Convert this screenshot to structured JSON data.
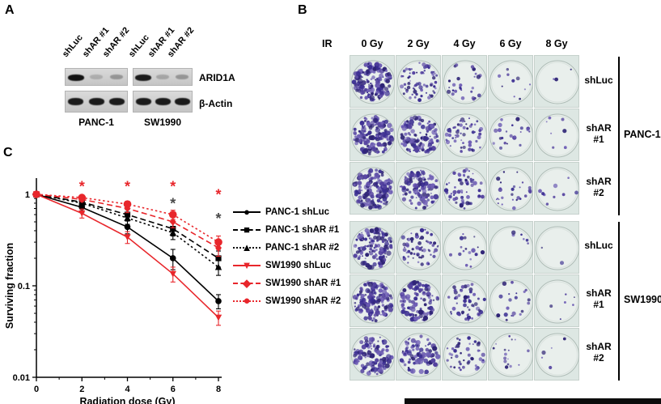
{
  "panels": {
    "a": {
      "label": "A",
      "lane_labels": [
        "shLuc",
        "shAR #1",
        "shAR #2",
        "shLuc",
        "shAR #1",
        "shAR #2"
      ],
      "blot_rows": [
        {
          "name": "ARID1A",
          "groups": [
            [
              1.0,
              0.18,
              0.3
            ],
            [
              0.95,
              0.22,
              0.3
            ]
          ]
        },
        {
          "name": "β-Actin",
          "groups": [
            [
              0.95,
              0.95,
              0.95
            ],
            [
              0.95,
              0.95,
              0.95
            ]
          ]
        }
      ],
      "group_labels": [
        "PANC-1",
        "SW1990"
      ]
    },
    "b": {
      "label": "B",
      "ir_label": "IR",
      "dose_labels": [
        "0 Gy",
        "2 Gy",
        "4 Gy",
        "6 Gy",
        "8 Gy"
      ],
      "row_labels": [
        "shLuc",
        "shAR\n#1",
        "shAR\n#2",
        "shLuc",
        "shAR\n#1",
        "shAR\n#2"
      ],
      "group_labels": [
        "PANC-1",
        "SW1990"
      ],
      "colony_counts": [
        [
          160,
          70,
          28,
          10,
          3
        ],
        [
          140,
          110,
          55,
          22,
          7
        ],
        [
          150,
          100,
          60,
          26,
          9
        ],
        [
          120,
          60,
          18,
          6,
          2
        ],
        [
          130,
          95,
          50,
          20,
          6
        ],
        [
          110,
          85,
          45,
          16,
          5
        ]
      ],
      "plate_bg": "#e9efec",
      "colony_colors": [
        "#3a2d91",
        "#54429f",
        "#6f5fb5",
        "#2e2375"
      ]
    },
    "c": {
      "label": "C"
    }
  },
  "chart_data": {
    "type": "line",
    "x": [
      0,
      2,
      4,
      6,
      8
    ],
    "xticks": [
      0,
      2,
      4,
      6,
      8
    ],
    "yticks": [
      1,
      0.1,
      0.01
    ],
    "xlabel": "Radiation dose (Gy)",
    "ylabel": "Surviving fraction",
    "yscale": "log",
    "xlim": [
      0,
      8
    ],
    "ylim": [
      0.01,
      1.5
    ],
    "series": [
      {
        "name": "PANC-1 shLuc",
        "color": "#000000",
        "dash": "solid",
        "marker": "circle",
        "msize": 3.8,
        "values": [
          1,
          0.72,
          0.44,
          0.2,
          0.068
        ],
        "errors": [
          0.04,
          0.09,
          0.07,
          0.05,
          0.012
        ]
      },
      {
        "name": "PANC-1 shAR #1",
        "color": "#000000",
        "dash": "dashed",
        "marker": "square",
        "msize": 3.6,
        "values": [
          1,
          0.82,
          0.6,
          0.42,
          0.2
        ],
        "errors": [
          0.03,
          0.07,
          0.08,
          0.07,
          0.04
        ]
      },
      {
        "name": "PANC-1 shAR #2",
        "color": "#000000",
        "dash": "dotted",
        "marker": "triangle",
        "msize": 4.2,
        "values": [
          1,
          0.8,
          0.55,
          0.38,
          0.16
        ],
        "errors": [
          0.03,
          0.07,
          0.08,
          0.06,
          0.03
        ]
      },
      {
        "name": "SW1990 shLuc",
        "color": "#e8262b",
        "dash": "solid",
        "marker": "tridown",
        "msize": 4.2,
        "values": [
          1,
          0.62,
          0.34,
          0.135,
          0.045
        ],
        "errors": [
          0.04,
          0.07,
          0.05,
          0.025,
          0.008
        ]
      },
      {
        "name": "SW1990 shAR #1",
        "color": "#e8262b",
        "dash": "dashed",
        "marker": "diamond",
        "msize": 4.0,
        "values": [
          1,
          0.88,
          0.7,
          0.5,
          0.26
        ],
        "errors": [
          0.03,
          0.05,
          0.07,
          0.07,
          0.05
        ]
      },
      {
        "name": "SW1990 shAR #2",
        "color": "#e8262b",
        "dash": "dotted",
        "marker": "circle",
        "msize": 4.8,
        "values": [
          1,
          0.92,
          0.78,
          0.6,
          0.3
        ],
        "errors": [
          0.03,
          0.04,
          0.06,
          0.07,
          0.05
        ]
      }
    ],
    "annotations": [
      {
        "x": 2,
        "y": 1.35,
        "text": "*",
        "color": "#e8262b"
      },
      {
        "x": 4,
        "y": 1.35,
        "text": "*",
        "color": "#e8262b"
      },
      {
        "x": 6,
        "y": 1.35,
        "text": "*",
        "color": "#e8262b"
      },
      {
        "x": 6,
        "y": 0.88,
        "text": "*",
        "color": "#4a4a4a"
      },
      {
        "x": 8,
        "y": 1.1,
        "text": "*",
        "color": "#e8262b"
      },
      {
        "x": 8,
        "y": 0.6,
        "text": "*",
        "color": "#4a4a4a"
      }
    ],
    "legend_position": "right"
  }
}
